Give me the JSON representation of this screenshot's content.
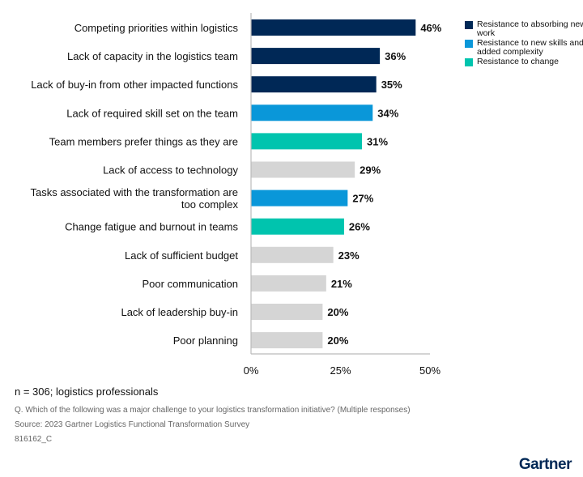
{
  "chart_data": {
    "type": "bar",
    "orientation": "horizontal",
    "categories": [
      "Competing priorities within logistics",
      "Lack of capacity in the logistics team",
      "Lack of buy-in from other impacted functions",
      "Lack of required skill set on the team",
      "Team members prefer things as they are",
      "Lack of access to technology",
      "Tasks associated with the transformation are too complex",
      "Change fatigue and burnout in teams",
      "Lack of sufficient budget",
      "Poor communication",
      "Lack of leadership buy-in",
      "Poor planning"
    ],
    "values": [
      46,
      36,
      35,
      34,
      31,
      29,
      27,
      26,
      23,
      21,
      20,
      20
    ],
    "value_labels": [
      "46%",
      "36%",
      "35%",
      "34%",
      "31%",
      "29%",
      "27%",
      "26%",
      "23%",
      "21%",
      "20%",
      "20%"
    ],
    "groups": [
      "absorb",
      "absorb",
      "absorb",
      "skills",
      "change",
      "none",
      "skills",
      "change",
      "none",
      "none",
      "none",
      "none"
    ],
    "xlim": [
      0,
      50
    ],
    "xticks": [
      "0%",
      "25%",
      "50%"
    ],
    "grid": false,
    "legend_placement": "top-right",
    "legend": [
      {
        "key": "absorb",
        "label": "Resistance to absorbing new work",
        "color": "#002856"
      },
      {
        "key": "skills",
        "label": "Resistance to new skills and added complexity",
        "color": "#0A97D9"
      },
      {
        "key": "change",
        "label": "Resistance to change",
        "color": "#00C4AE"
      }
    ],
    "other_color": "#D5D5D5"
  },
  "footer": {
    "sample": "n = 306; logistics professionals",
    "question": "Q. Which of the following was a major challenge to your logistics transformation initiative? (Multiple responses)",
    "source": "Source: 2023 Gartner Logistics Functional Transformation Survey",
    "id": "816162_C",
    "logo": "Gartner"
  }
}
